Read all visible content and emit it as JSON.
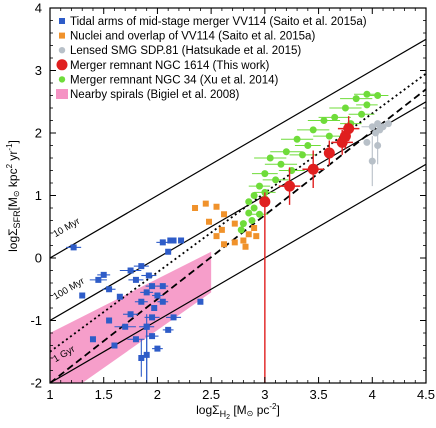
{
  "chart_data": {
    "type": "scatter",
    "title": "",
    "xlim": [
      1,
      4.5
    ],
    "ylim": [
      -2,
      4
    ],
    "x_ticks": [
      1,
      1.5,
      2,
      2.5,
      3,
      3.5,
      4,
      4.5
    ],
    "y_ticks": [
      -2,
      -1,
      0,
      1,
      2,
      3,
      4
    ],
    "x_tick_labels": [
      "1",
      "1.5",
      "2",
      "2.5",
      "3",
      "3.5",
      "4",
      "4.5"
    ],
    "y_tick_labels": [
      "-2",
      "-1",
      "0",
      "1",
      "2",
      "3",
      "4"
    ],
    "xlabel": {
      "main": "logΣ",
      "sub": "H",
      "subsub": "2",
      "rest": " [M",
      "sun": "⊙",
      "unit": " pc",
      "exp": "-2",
      "close": "]"
    },
    "ylabel": {
      "main": "logΣ",
      "sub": "SFR",
      "rest": "[M",
      "sun": "⊙",
      "unit": " kpc",
      "exp1": "2",
      "unit2": " yr",
      "exp2": "-1",
      "close": "]"
    },
    "grid": false,
    "legend_position": "top-left",
    "legend": [
      {
        "label": "Tidal arms of mid-stage merger VV114 (Saito et al. 2015a)",
        "marker": "square",
        "color": "#2e5cc8"
      },
      {
        "label": "Nuclei and overlap of VV114 (Saito et al. 2015a)",
        "marker": "square",
        "color": "#f0922b"
      },
      {
        "label": "Lensed SMG SDP.81 (Hatsukade et al. 2015)",
        "marker": "circle",
        "color": "#b8c0c8"
      },
      {
        "label": "Merger remnant NGC 1614 (This work)",
        "marker": "circle-large",
        "color": "#e01f1f"
      },
      {
        "label": "Merger remnant NGC 34 (Xu et al. 2014)",
        "marker": "circle",
        "color": "#6fdc3a"
      },
      {
        "label": "Nearby spirals (Bigiel et al. 2008)",
        "marker": "patch",
        "color": "#f593c4"
      }
    ],
    "depletion_lines": [
      {
        "label": "10 Myr",
        "style": "solid",
        "x": [
          1,
          4.5
        ],
        "y": [
          0,
          3.5
        ]
      },
      {
        "label": "100 Myr",
        "style": "solid",
        "x": [
          1,
          4.5
        ],
        "y": [
          -1,
          2.5
        ]
      },
      {
        "label": "1 Gyr",
        "style": "solid",
        "x": [
          1,
          4.5
        ],
        "y": [
          -2,
          1.5
        ]
      },
      {
        "label": "",
        "style": "dotted",
        "x": [
          1,
          4.5
        ],
        "y": [
          -1.5,
          2.95
        ]
      },
      {
        "label": "",
        "style": "dashed",
        "x": [
          1,
          4.5
        ],
        "y": [
          -2,
          2.7
        ]
      }
    ],
    "spirals_region": [
      [
        1,
        -1.75
      ],
      [
        1,
        -2
      ],
      [
        1.3,
        -2
      ],
      [
        2.5,
        -0.55
      ],
      [
        2.5,
        0.1
      ],
      [
        1,
        -1.2
      ]
    ],
    "series": [
      {
        "name": "Tidal arms of mid-stage merger VV114 (Saito et al. 2015a)",
        "marker": "square",
        "color": "#2e5cc8",
        "points": [
          {
            "x": 1.22,
            "y": 0.17,
            "xerr": 0.07
          },
          {
            "x": 1.5,
            "y": -0.27,
            "xerr": 0.06
          },
          {
            "x": 1.45,
            "y": -0.35,
            "xerr": 0.08
          },
          {
            "x": 1.55,
            "y": -0.5,
            "xerr": 0.06
          },
          {
            "x": 1.3,
            "y": -0.6
          },
          {
            "x": 1.75,
            "y": -0.2,
            "xerr": 0.1
          },
          {
            "x": 1.85,
            "y": -0.13,
            "xerr": 0.07
          },
          {
            "x": 1.92,
            "y": -0.28,
            "xerr": 0.07
          },
          {
            "x": 1.8,
            "y": -0.35,
            "xerr": 0.07
          },
          {
            "x": 1.65,
            "y": -0.62
          },
          {
            "x": 1.95,
            "y": -0.45,
            "xerr": 0.06
          },
          {
            "x": 2.05,
            "y": -0.45,
            "xerr": 0.05
          },
          {
            "x": 1.9,
            "y": -0.55,
            "xerr": 0.06
          },
          {
            "x": 2.0,
            "y": -0.6,
            "xerr": 0.05
          },
          {
            "x": 1.85,
            "y": -0.7,
            "xerr": 0.06
          },
          {
            "x": 2.05,
            "y": -0.7,
            "xerr": 0.05
          },
          {
            "x": 1.97,
            "y": -0.8
          },
          {
            "x": 1.75,
            "y": -0.9,
            "xerr": 0.07
          },
          {
            "x": 1.95,
            "y": -0.95,
            "xerr": 0.07
          },
          {
            "x": 2.15,
            "y": -0.95,
            "xerr": 0.07
          },
          {
            "x": 1.55,
            "y": -1.0
          },
          {
            "x": 1.7,
            "y": -1.1,
            "xerr": 0.1
          },
          {
            "x": 1.9,
            "y": -1.1,
            "xerr": 0.07
          },
          {
            "x": 2.1,
            "y": -1.15,
            "xerr": 0.05
          },
          {
            "x": 1.95,
            "y": -1.25,
            "xerr": 0.06
          },
          {
            "x": 1.8,
            "y": -1.3,
            "xerr": 0.08
          },
          {
            "x": 1.4,
            "y": -1.3
          },
          {
            "x": 2.0,
            "y": -1.45,
            "xerr": 0.05
          },
          {
            "x": 1.6,
            "y": -1.4
          },
          {
            "x": 1.9,
            "y": -1.55,
            "yerr": 0.4
          },
          {
            "x": 1.85,
            "y": -1.6,
            "yerr": 0.3
          },
          {
            "x": 1.9,
            "y": -1.1,
            "yerr_low": 1.1,
            "yerr_high": 0.2
          },
          {
            "x": 2.4,
            "y": -0.7
          },
          {
            "x": 2.1,
            "y": 0.1
          },
          {
            "x": 2.12,
            "y": 0.28
          },
          {
            "x": 2.15,
            "y": 0.28
          },
          {
            "x": 2.05,
            "y": 0.25,
            "xerr": 0.06
          },
          {
            "x": 2.22,
            "y": 0.28
          }
        ]
      },
      {
        "name": "Nuclei and overlap of VV114 (Saito et al. 2015a)",
        "marker": "square",
        "color": "#f0922b",
        "points": [
          {
            "x": 2.35,
            "y": 0.8
          },
          {
            "x": 2.45,
            "y": 0.87
          },
          {
            "x": 2.55,
            "y": 0.82
          },
          {
            "x": 2.62,
            "y": 0.7
          },
          {
            "x": 2.48,
            "y": 0.58
          },
          {
            "x": 2.6,
            "y": 0.45
          },
          {
            "x": 2.55,
            "y": 0.35
          },
          {
            "x": 2.72,
            "y": 0.55
          },
          {
            "x": 2.85,
            "y": 0.38
          },
          {
            "x": 2.72,
            "y": 0.25
          },
          {
            "x": 2.62,
            "y": 0.22
          },
          {
            "x": 2.8,
            "y": 0.28
          },
          {
            "x": 2.92,
            "y": 0.35
          },
          {
            "x": 2.9,
            "y": 0.48
          },
          {
            "x": 2.82,
            "y": 0.18
          }
        ]
      },
      {
        "name": "Lensed SMG SDP.81 (Hatsukade et al. 2015)",
        "marker": "circle",
        "color": "#b8c0c8",
        "points": [
          {
            "x": 4.0,
            "y": 2.1,
            "xerr": 0.1
          },
          {
            "x": 4.05,
            "y": 2.15
          },
          {
            "x": 4.07,
            "y": 2.05
          },
          {
            "x": 4.1,
            "y": 2.1
          },
          {
            "x": 4.15,
            "y": 2.15
          },
          {
            "x": 4.03,
            "y": 2.0
          },
          {
            "x": 3.95,
            "y": 1.85
          },
          {
            "x": 4.05,
            "y": 1.8,
            "yerr": 0.3
          },
          {
            "x": 4.0,
            "y": 1.55,
            "yerr": 0.4
          }
        ]
      },
      {
        "name": "Merger remnant NGC 1614 (This work)",
        "marker": "circle-large",
        "color": "#e01f1f",
        "points": [
          {
            "x": 3.0,
            "y": 0.9,
            "yerr_low": 2.9,
            "yerr_high": 0.15
          },
          {
            "x": 3.23,
            "y": 1.15,
            "xerr": 0.1,
            "yerr": 0.3
          },
          {
            "x": 3.45,
            "y": 1.42,
            "xerr": 0.1,
            "yerr": 0.3
          },
          {
            "x": 3.6,
            "y": 1.68,
            "yerr": 0.2
          },
          {
            "x": 3.72,
            "y": 1.85,
            "xerr": 0.1,
            "yerr": 0.2
          },
          {
            "x": 3.75,
            "y": 1.95,
            "yerr": 0.2
          },
          {
            "x": 3.78,
            "y": 2.07,
            "xerr": 0.1,
            "yerr": 0.2
          }
        ]
      },
      {
        "name": "Merger remnant NGC 34 (Xu et al. 2014)",
        "marker": "circle",
        "color": "#6fdc3a",
        "points": [
          {
            "x": 3.95,
            "y": 2.62,
            "xerr": 0.12
          },
          {
            "x": 4.05,
            "y": 2.6,
            "xerr": 0.1
          },
          {
            "x": 3.85,
            "y": 2.55,
            "xerr": 0.15
          },
          {
            "x": 3.95,
            "y": 2.45,
            "xerr": 0.1
          },
          {
            "x": 3.75,
            "y": 2.4,
            "xerr": 0.15
          },
          {
            "x": 3.9,
            "y": 2.3,
            "xerr": 0.12
          },
          {
            "x": 3.65,
            "y": 2.25,
            "xerr": 0.15
          },
          {
            "x": 3.55,
            "y": 2.2,
            "xerr": 0.15
          },
          {
            "x": 3.8,
            "y": 2.15,
            "xerr": 0.1
          },
          {
            "x": 3.45,
            "y": 2.05,
            "xerr": 0.15
          },
          {
            "x": 3.6,
            "y": 1.95,
            "xerr": 0.15
          },
          {
            "x": 3.3,
            "y": 1.9,
            "xerr": 0.15
          },
          {
            "x": 3.4,
            "y": 1.8,
            "xerr": 0.12
          },
          {
            "x": 3.2,
            "y": 1.7,
            "xerr": 0.15
          },
          {
            "x": 3.35,
            "y": 1.65,
            "xerr": 0.12
          },
          {
            "x": 3.05,
            "y": 1.6,
            "xerr": 0.15
          },
          {
            "x": 3.15,
            "y": 1.5,
            "xerr": 0.15
          },
          {
            "x": 3.25,
            "y": 1.4,
            "xerr": 0.12
          },
          {
            "x": 3.0,
            "y": 1.35,
            "xerr": 0.12
          },
          {
            "x": 3.1,
            "y": 1.25,
            "xerr": 0.12
          },
          {
            "x": 2.95,
            "y": 1.15,
            "xerr": 0.1
          },
          {
            "x": 3.0,
            "y": 1.05,
            "xerr": 0.1
          },
          {
            "x": 2.9,
            "y": 1.0
          },
          {
            "x": 2.85,
            "y": 0.9
          },
          {
            "x": 2.9,
            "y": 0.8
          },
          {
            "x": 2.95,
            "y": 0.7,
            "xerr": 0.08
          },
          {
            "x": 2.85,
            "y": 0.72
          },
          {
            "x": 2.88,
            "y": 0.6
          },
          {
            "x": 2.8,
            "y": 0.55
          },
          {
            "x": 2.78,
            "y": 0.45
          },
          {
            "x": 3.0,
            "y": 0.95
          }
        ]
      }
    ]
  }
}
